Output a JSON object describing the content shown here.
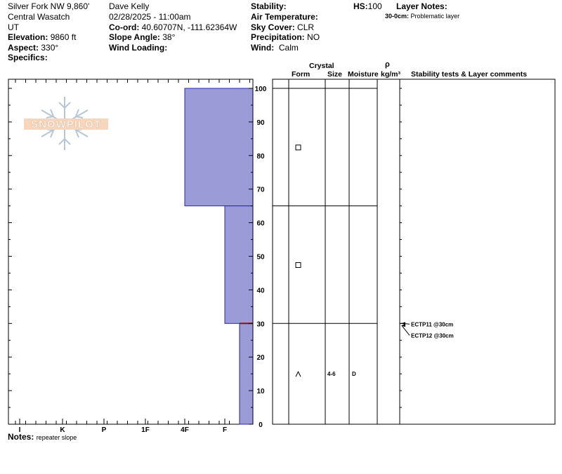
{
  "header": {
    "col1": {
      "location": "Silver Fork NW 9,860'",
      "range": "Central Wasatch",
      "state": "UT",
      "elevation_label": "Elevation:",
      "elevation_value": "9860 ft",
      "aspect_label": "Aspect:",
      "aspect_value": "330°",
      "specifics_label": "Specifics:"
    },
    "col2": {
      "observer": "Dave Kelly",
      "datetime": "02/28/2025 - 11:00am",
      "coord_label": "Co-ord:",
      "coord_value": "40.60707N, -111.62364W",
      "slope_label": "Slope Angle:",
      "slope_value": "38°",
      "wind_loading_label": "Wind Loading:"
    },
    "col3": {
      "stability_label": "Stability:",
      "air_temp_label": "Air Temperature:",
      "sky_label": "Sky Cover:",
      "sky_value": "CLR",
      "precip_label": "Precipitation:",
      "precip_value": "NO",
      "wind_label": "Wind:",
      "wind_value": "Calm"
    },
    "hs_label": "HS:",
    "hs_value": "100",
    "layer_notes_label": "Layer Notes:",
    "layer_note": "30-0cm:",
    "layer_note_text": "Problematic layer"
  },
  "notes": {
    "label": "Notes:",
    "text": "repeater slope"
  },
  "logo_text": "SNOWPILOT",
  "table_headers": {
    "crystal": "Crystal",
    "form": "Form",
    "size": "Size",
    "moisture": "Moisture",
    "rho": "ρ",
    "density_unit": "kg/m³",
    "stability": "Stability tests & Layer comments"
  },
  "tests": [
    "ECTP11 @30cm",
    "ECTP12 @30cm"
  ],
  "chart_data": {
    "type": "bar",
    "x_axis": {
      "categories": [
        "I",
        "K",
        "P",
        "1F",
        "4F",
        "F"
      ]
    },
    "y_axis": {
      "range": [
        0,
        100
      ],
      "ticks": [
        0,
        10,
        20,
        30,
        40,
        50,
        60,
        70,
        80,
        90,
        100
      ]
    },
    "hardness_profile": [
      {
        "top": 100,
        "bottom": 65,
        "hardness": "4F"
      },
      {
        "top": 65,
        "bottom": 30,
        "hardness": "F"
      },
      {
        "top": 30,
        "bottom": 0,
        "hardness": "F-"
      }
    ],
    "layers": [
      {
        "top": 100,
        "bottom": 65,
        "form_symbol": "□",
        "size": "",
        "moisture": ""
      },
      {
        "top": 65,
        "bottom": 30,
        "form_symbol": "□",
        "size": "",
        "moisture": ""
      },
      {
        "top": 30,
        "bottom": 0,
        "form_symbol": "^",
        "size": "4-6",
        "moisture": "D"
      }
    ],
    "colors": {
      "fill": "#9b9bd8",
      "stroke": "#2a2aa8",
      "problem_line": "#aa0000"
    }
  }
}
